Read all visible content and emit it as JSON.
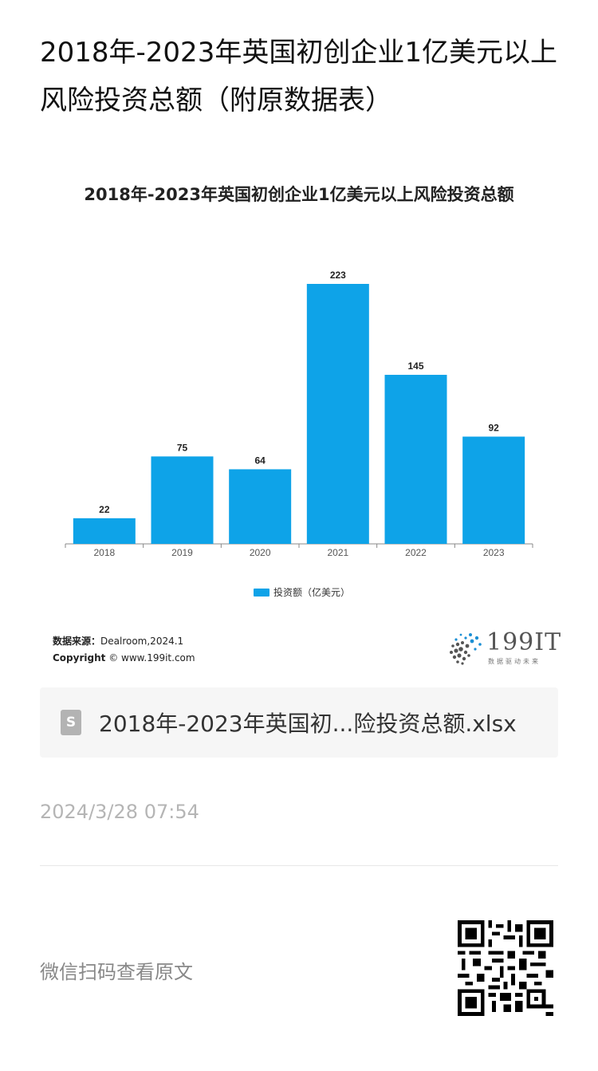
{
  "article": {
    "title": "2018年-2023年英国初创企业1亿美元以上风险投资总额（附原数据表）"
  },
  "chart_data": {
    "type": "bar",
    "title": "2018年-2023年英国初创企业1亿美元以上风险投资总额",
    "categories": [
      "2018",
      "2019",
      "2020",
      "2021",
      "2022",
      "2023"
    ],
    "series": [
      {
        "name": "投资额（亿美元）",
        "values": [
          22,
          75,
          64,
          223,
          145,
          92
        ]
      }
    ],
    "ylim": [
      0,
      223
    ],
    "grid": false,
    "legend_position": "bottom",
    "bar_color": "#0ea3e8"
  },
  "source": {
    "label": "数据来源：",
    "value": "Dealroom,2024.1",
    "copyright_label": "Copyright",
    "copyright_symbol": "©",
    "copyright_value": "www.199it.com"
  },
  "logo": {
    "text": "199IT",
    "subtitle": "数据驱动未来"
  },
  "file": {
    "icon_letter": "S",
    "name": "2018年-2023年英国初...险投资总额.xlsx"
  },
  "date": "2024/3/28 07:54",
  "footer": {
    "text": "微信扫码查看原文"
  }
}
